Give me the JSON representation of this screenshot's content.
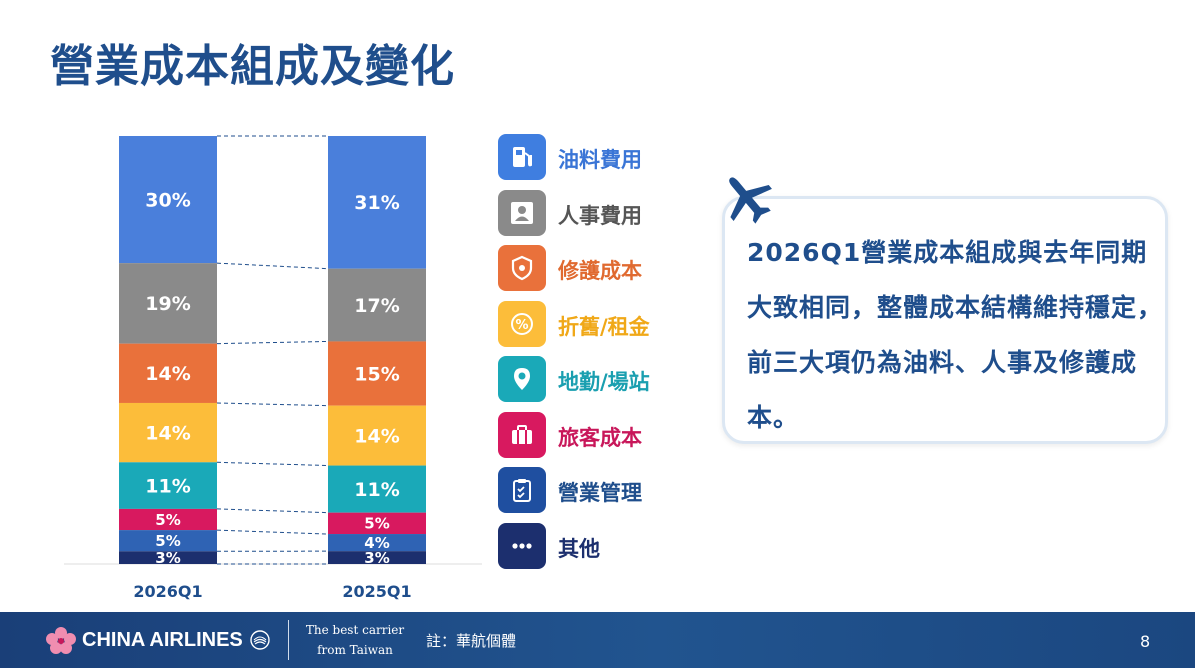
{
  "title": "營業成本組成及變化",
  "chart_data": {
    "type": "bar",
    "stacked": true,
    "categories": [
      "2026Q1",
      "2025Q1"
    ],
    "series": [
      {
        "name": "油料費用",
        "values": [
          30,
          31
        ],
        "color": "#4a7fdb",
        "label_color": "#ffffff"
      },
      {
        "name": "人事費用",
        "values": [
          19,
          17
        ],
        "color": "#8a8a8a",
        "label_color": "#ffffff"
      },
      {
        "name": "修護成本",
        "values": [
          14,
          15
        ],
        "color": "#e9713b",
        "label_color": "#ffffff"
      },
      {
        "name": "折舊/租金",
        "values": [
          14,
          14
        ],
        "color": "#fcbd3a",
        "label_color": "#ffffff"
      },
      {
        "name": "地勤/場站",
        "values": [
          11,
          11
        ],
        "color": "#1aa9b8",
        "label_color": "#ffffff"
      },
      {
        "name": "旅客成本",
        "values": [
          5,
          5
        ],
        "color": "#d8195f",
        "label_color": "#ffffff"
      },
      {
        "name": "營業管理",
        "values": [
          5,
          4
        ],
        "color": "#2f63b4",
        "label_color": "#ffffff"
      },
      {
        "name": "其他",
        "values": [
          3,
          3
        ],
        "color": "#1c2f6e",
        "label_color": "#ffffff"
      }
    ],
    "data_labels": [
      [
        "30%",
        "19%",
        "14%",
        "14%",
        "11%",
        "5%",
        "5%",
        "3%"
      ],
      [
        "31%",
        "17%",
        "15%",
        "14%",
        "11%",
        "5%",
        "4%",
        "3%"
      ]
    ],
    "legend_position": "right",
    "grid": false
  },
  "legend": {
    "items": [
      {
        "label": "油料費用",
        "icon": "fuel-pump-icon",
        "color": "#3f7ee0",
        "text_color": "#3a75d6"
      },
      {
        "label": "人事費用",
        "icon": "person-icon",
        "color": "#8a8a8a",
        "text_color": "#555555"
      },
      {
        "label": "修護成本",
        "icon": "shield-icon",
        "color": "#e9713b",
        "text_color": "#e06a30"
      },
      {
        "label": "折舊/租金",
        "icon": "percent-icon",
        "color": "#fcbd3a",
        "text_color": "#f0a818"
      },
      {
        "label": "地勤/場站",
        "icon": "location-pin-icon",
        "color": "#1aa9b8",
        "text_color": "#1a9fb0"
      },
      {
        "label": "旅客成本",
        "icon": "suitcase-icon",
        "color": "#d8195f",
        "text_color": "#c8175a"
      },
      {
        "label": "營業管理",
        "icon": "clipboard-icon",
        "color": "#1f4fa0",
        "text_color": "#1f4e8c"
      },
      {
        "label": "其他",
        "icon": "more-dots-icon",
        "color": "#1c2f6e",
        "text_color": "#1c2f6e"
      }
    ]
  },
  "callout": {
    "text": "2026Q1營業成本組成與去年同期大致相同，整體成本結構維持穩定，前三大項仍為油料、人事及修護成本。",
    "icon": "airplane-icon"
  },
  "footer": {
    "brand": "CHINA AIRLINES",
    "tagline_line1": "The best carrier",
    "tagline_line2": "from Taiwan",
    "note": "註：華航個體",
    "page_number": "8"
  }
}
